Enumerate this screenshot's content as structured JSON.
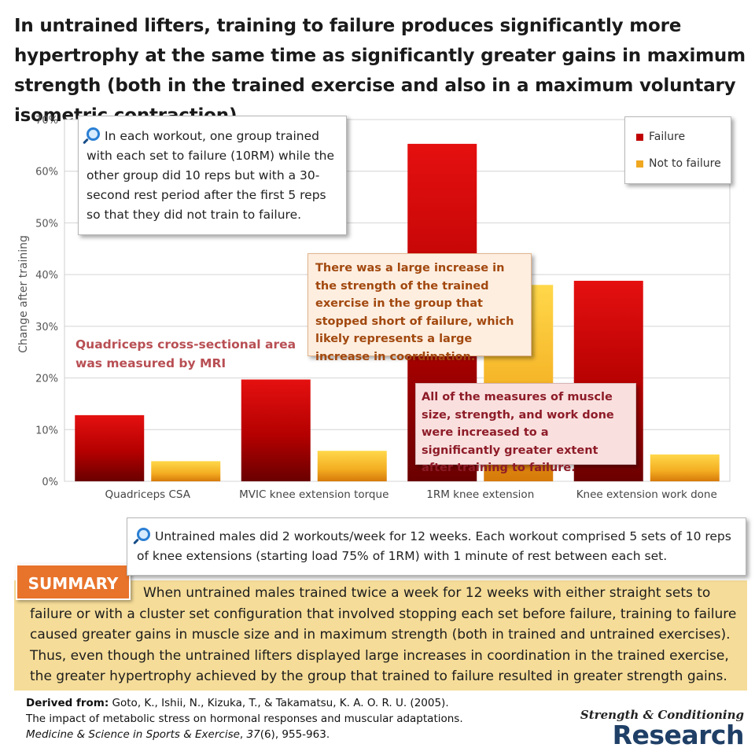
{
  "headline": "In untrained lifters, training to failure produces significantly more hypertrophy at the same time as significantly greater gains in maximum strength (both in the trained exercise and also in a maximum voluntary isometric contraction).",
  "chart_data": {
    "type": "bar",
    "categories": [
      "Quadriceps CSA",
      "MVIC knee extension torque",
      "1RM knee extension",
      "Knee extension work done"
    ],
    "series": [
      {
        "name": "Failure",
        "values": [
          12.8,
          19.7,
          65.3,
          38.8
        ],
        "color": "#c00000"
      },
      {
        "name": "Not to failure",
        "values": [
          3.9,
          5.9,
          38.0,
          5.2
        ],
        "color": "#f0a820"
      }
    ],
    "title": "",
    "xlabel": "",
    "ylabel": "Change after training",
    "ylim": [
      0,
      70
    ],
    "yticks": [
      "0%",
      "10%",
      "20%",
      "30%",
      "40%",
      "50%",
      "60%",
      "70%"
    ],
    "grid": true,
    "legend": "top-right"
  },
  "callouts": {
    "method": "In each workout, one group trained with each set to failure (10RM) while the other group did 10 reps but with a 30-second rest period after the first 5 reps so that they did not train to failure.",
    "mri": "Quadriceps cross-sectional area was measured by MRI",
    "coordination": "There was a large increase in the strength of the trained exercise in the group that stopped short of failure, which likely represents a large increase in coordination.",
    "measures": "All of the measures of muscle size, strength, and work done were increased to a significantly greater extent after training to failure.",
    "protocol": "Untrained males did 2 workouts/week for 12 weeks. Each workout comprised 5 sets of 10 reps of knee extensions (starting load 75% of 1RM) with 1 minute of rest between each set."
  },
  "summary": {
    "label": "SUMMARY",
    "text": "When untrained males trained twice a week for 12 weeks with either straight sets to failure or with a cluster set configuration that involved stopping each set before failure, training to failure caused greater gains in muscle size and in maximum strength (both in trained and untrained exercises). Thus, even though the untrained lifters displayed large increases in coordination in the trained exercise, the greater hypertrophy achieved by the group that trained to failure resulted in greater strength gains."
  },
  "citation": {
    "label": "Derived from:",
    "authors": "Goto, K., Ishii, N., Kizuka, T., & Takamatsu, K. A. O. R. U. (2005).",
    "title": "The impact of metabolic stress on hormonal responses and muscular adaptations.",
    "journal": "Medicine & Science in Sports & Exercise",
    "volume": "37",
    "rest": "(6), 955-963."
  },
  "brand": {
    "top": "Strength & Conditioning",
    "bottom": "Research"
  }
}
